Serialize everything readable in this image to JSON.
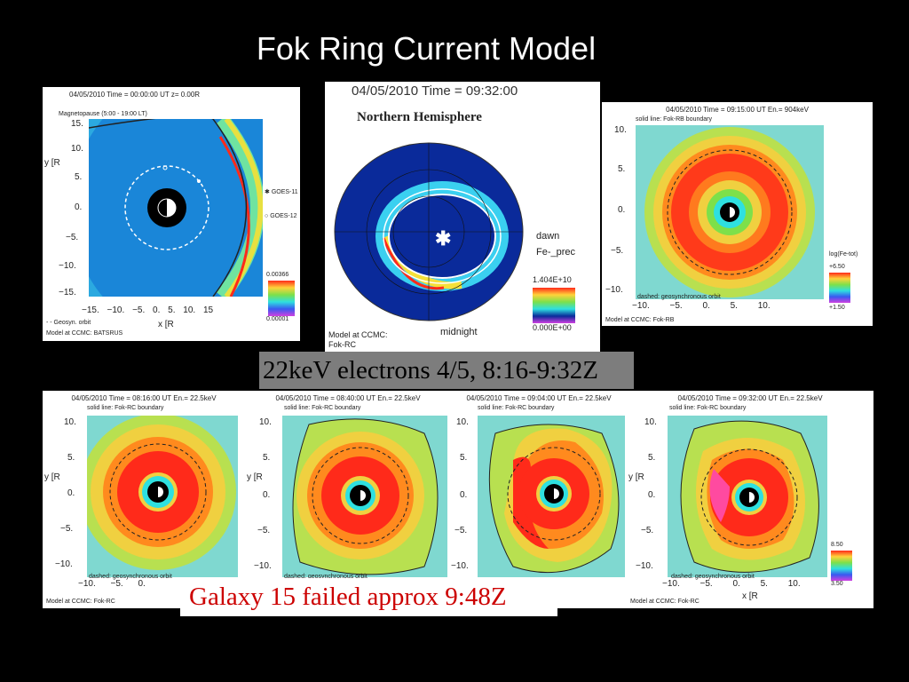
{
  "slide": {
    "title": "Fok Ring Current Model",
    "caption_top": "22keV electrons 4/5, 8:16-9:32Z",
    "caption_bottom": "Galaxy 15 failed approx 9:48Z"
  },
  "panels": {
    "batsrus": {
      "header": "04/05/2010 Time = 00:00:00 UT  z= 0.00R",
      "legend_line": "Magnetopause (5:00 - 19:00 LT)",
      "goes11": "GOES-11",
      "goes12": "GOES-12",
      "colorbar_max": "0.00366",
      "colorbar_min": "0.00001",
      "orbit_note": "- - Geosyn. orbit",
      "model_note": "Model at CCMC: BATSRUS",
      "ylabel": "y [R",
      "xlabel": "x [R",
      "y_ticks": [
        "15.",
        "10.",
        "5.",
        "0.",
        "−5.",
        "−10.",
        "−15."
      ],
      "x_ticks": [
        "−15.",
        "−10.",
        "−5.",
        "0.",
        "5.",
        "10.",
        "15"
      ]
    },
    "north": {
      "header": "04/05/2010 Time = 09:32:00",
      "subtitle": "Northern Hemisphere",
      "dawn": "dawn",
      "var": "Fe-_prec",
      "colorbar_max": "1.404E+10",
      "colorbar_min": "0.000E+00",
      "midnight": "midnight",
      "model_note_1": "Model at CCMC:",
      "model_note_2": "Fok-RC"
    },
    "top_right": {
      "header": "04/05/2010 Time = 09:15:00 UT  En.= 904keV",
      "sub": "solid line: Fok-RB boundary",
      "dashed": "dashed: geosynchronous orbit",
      "model": "Model at CCMC: Fok-RB",
      "cb_label": "log(Fe-tot)",
      "cb_max": "+6.50",
      "cb_min": "+1.50",
      "y_ticks": [
        "10.",
        "5.",
        "0.",
        "−5.",
        "−10."
      ],
      "x_ticks": [
        "−10.",
        "−5.",
        "0.",
        "5.",
        "10."
      ]
    },
    "bottom": [
      {
        "header": "04/05/2010 Time = 08:16:00 UT  En.= 22.5keV",
        "sub": "solid line: Fok-RC boundary"
      },
      {
        "header": "04/05/2010 Time = 08:40:00 UT  En.= 22.5keV",
        "sub": "solid line: Fok-RC boundary"
      },
      {
        "header": "04/05/2010 Time = 09:04:00 UT  En.= 22.5keV",
        "sub": "solid line: Fok-RC boundary"
      },
      {
        "header": "04/05/2010 Time = 09:32:00 UT  En.= 22.5keV",
        "sub": "solid line: Fok-RC boundary"
      }
    ],
    "bottom_common": {
      "dashed": "dashed: geosynchronous orbit",
      "model": "Model at CCMC: Fok-RC",
      "cb_max": "8.50",
      "cb_min": "3.50",
      "y_ticks": [
        "10.",
        "5.",
        "0.",
        "−5.",
        "−10."
      ],
      "x_ticks": [
        "−10.",
        "−5.",
        "0.",
        "5.",
        "10."
      ],
      "ylabel": "y [R",
      "xlabel": "x [R"
    }
  },
  "colors": {
    "outer": "#2ee0e0",
    "green": "#7de04a",
    "yellow": "#f5e03a",
    "orange": "#ff8a1e",
    "red": "#ff2a1a",
    "polar_blue": "#0a2a9a"
  }
}
